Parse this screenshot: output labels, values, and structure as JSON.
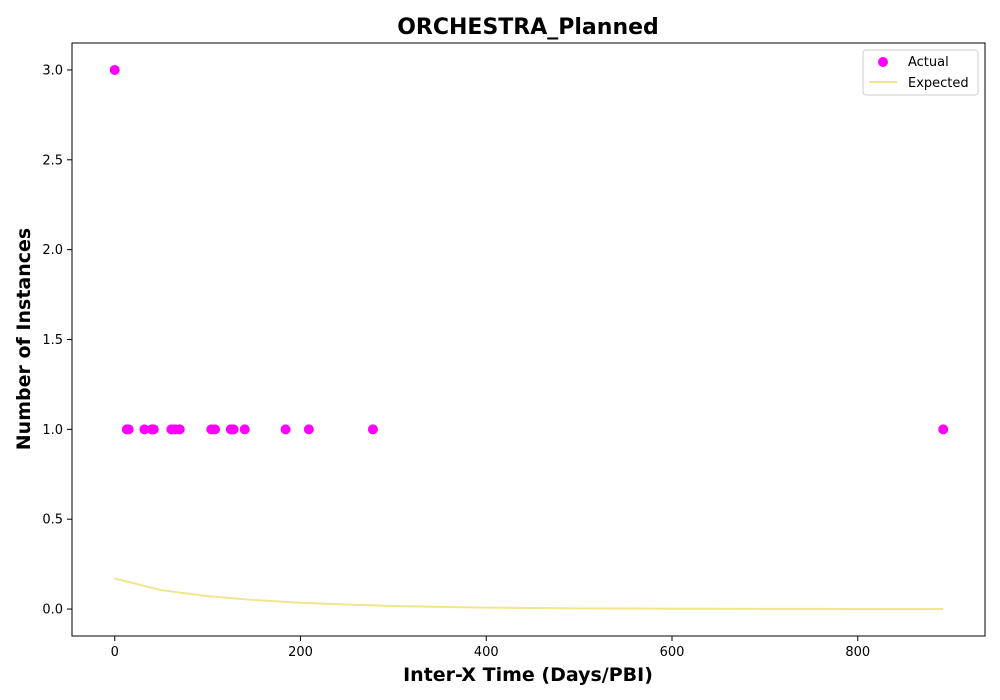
{
  "chart_data": {
    "type": "scatter",
    "title": "ORCHESTRA_Planned",
    "xlabel": "Inter-X Time (Days/PBI)",
    "ylabel": "Number of Instances",
    "xlim": [
      -46,
      937
    ],
    "ylim": [
      -0.15,
      3.15
    ],
    "xticks": [
      0,
      200,
      400,
      600,
      800
    ],
    "xtick_labels": [
      "0",
      "200",
      "400",
      "600",
      "800"
    ],
    "yticks": [
      0.0,
      0.5,
      1.0,
      1.5,
      2.0,
      2.5,
      3.0
    ],
    "ytick_labels": [
      "0.0",
      "0.5",
      "1.0",
      "1.5",
      "2.0",
      "2.5",
      "3.0"
    ],
    "grid": false,
    "legend_position": "top-right",
    "series": [
      {
        "name": "Actual",
        "kind": "scatter",
        "color": "#ff00ff",
        "x": [
          0,
          13,
          15,
          32,
          40,
          42,
          61,
          65,
          70,
          104,
          108,
          125,
          128,
          140,
          184,
          209,
          278,
          892
        ],
        "y": [
          3,
          1,
          1,
          1,
          1,
          1,
          1,
          1,
          1,
          1,
          1,
          1,
          1,
          1,
          1,
          1,
          1,
          1
        ]
      },
      {
        "name": "Expected",
        "kind": "line",
        "color": "#f0e68c",
        "x": [
          0,
          50,
          100,
          150,
          200,
          250,
          300,
          350,
          400,
          450,
          500,
          550,
          600,
          650,
          700,
          750,
          800,
          850,
          892
        ],
        "y": [
          0.17,
          0.105,
          0.072,
          0.05,
          0.035,
          0.025,
          0.017,
          0.012,
          0.008,
          0.006,
          0.004,
          0.003,
          0.002,
          0.0015,
          0.001,
          0.0007,
          0.0005,
          0.0003,
          0.0002
        ]
      }
    ]
  }
}
